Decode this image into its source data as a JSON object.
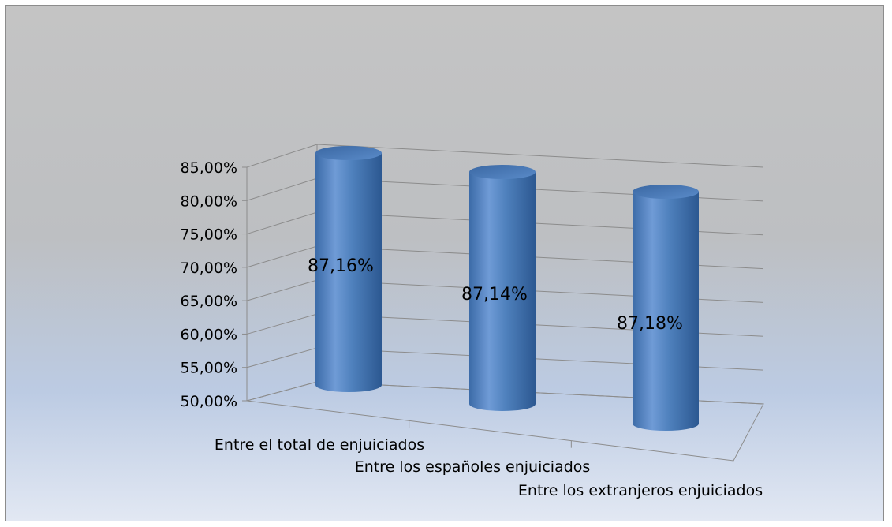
{
  "chart_data": {
    "type": "bar",
    "style": "3d-cylinder",
    "title": "",
    "xlabel": "",
    "ylabel": "",
    "categories": [
      "Entre el total de enjuiciados",
      "Entre los españoles enjuiciados",
      "Entre los extranjeros enjuiciados"
    ],
    "values": [
      87.16,
      87.14,
      87.18
    ],
    "data_labels": [
      "87,16%",
      "87,14%",
      "87,18%"
    ],
    "ylim": [
      50,
      85
    ],
    "yticks": [
      50,
      55,
      60,
      65,
      70,
      75,
      80,
      85
    ],
    "ytick_labels": [
      "50,00%",
      "55,00%",
      "60,00%",
      "65,00%",
      "70,00%",
      "75,00%",
      "80,00%",
      "85,00%"
    ],
    "grid": true,
    "legend": "none",
    "colors": {
      "bar": "#4f81bd",
      "bar_light": "#7aa6de",
      "bar_dark": "#2d5a94",
      "gridline": "#8c8c8c"
    }
  }
}
